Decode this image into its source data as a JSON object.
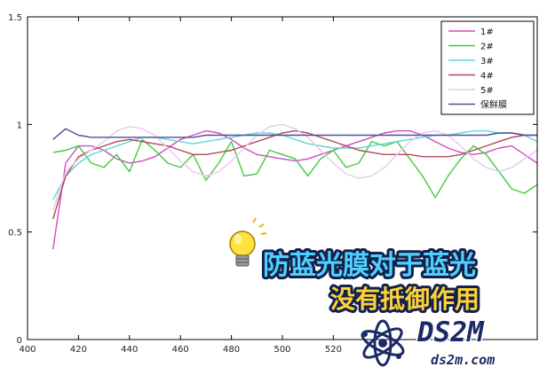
{
  "chart_data": {
    "type": "line",
    "title": "",
    "xlabel": "",
    "ylabel": "",
    "xlim": [
      400,
      600
    ],
    "ylim": [
      0,
      1.5
    ],
    "x_ticks": [
      400,
      420,
      440,
      460,
      480,
      500,
      520
    ],
    "y_ticks": [
      0,
      0.5,
      1,
      1.5
    ],
    "y_tick_labels": [
      "0",
      "0.5",
      "1",
      "1.5"
    ],
    "grid": false,
    "legend_position": "top-right",
    "x": [
      410,
      415,
      420,
      425,
      430,
      435,
      440,
      445,
      450,
      455,
      460,
      465,
      470,
      475,
      480,
      485,
      490,
      495,
      500,
      505,
      510,
      515,
      520,
      525,
      530,
      535,
      540,
      545,
      550,
      555,
      560,
      565,
      570,
      575,
      580,
      585,
      590,
      595,
      600
    ],
    "series": [
      {
        "name": "1#",
        "color": "#d04cc4",
        "values": [
          0.42,
          0.82,
          0.9,
          0.9,
          0.88,
          0.84,
          0.82,
          0.83,
          0.85,
          0.89,
          0.93,
          0.95,
          0.97,
          0.96,
          0.93,
          0.89,
          0.86,
          0.85,
          0.84,
          0.83,
          0.84,
          0.86,
          0.88,
          0.9,
          0.92,
          0.94,
          0.96,
          0.97,
          0.97,
          0.95,
          0.92,
          0.89,
          0.87,
          0.86,
          0.87,
          0.89,
          0.9,
          0.86,
          0.82
        ]
      },
      {
        "name": "2#",
        "color": "#3fcc3f",
        "values": [
          0.87,
          0.88,
          0.9,
          0.82,
          0.8,
          0.86,
          0.78,
          0.93,
          0.88,
          0.82,
          0.8,
          0.86,
          0.74,
          0.82,
          0.92,
          0.76,
          0.77,
          0.88,
          0.86,
          0.84,
          0.76,
          0.84,
          0.88,
          0.8,
          0.82,
          0.92,
          0.9,
          0.92,
          0.84,
          0.76,
          0.66,
          0.76,
          0.84,
          0.9,
          0.86,
          0.78,
          0.7,
          0.68,
          0.72
        ]
      },
      {
        "name": "3#",
        "color": "#5fd6d6",
        "values": [
          0.65,
          0.76,
          0.82,
          0.86,
          0.88,
          0.9,
          0.92,
          0.94,
          0.94,
          0.93,
          0.92,
          0.91,
          0.92,
          0.93,
          0.94,
          0.95,
          0.96,
          0.96,
          0.95,
          0.93,
          0.91,
          0.9,
          0.89,
          0.89,
          0.89,
          0.9,
          0.91,
          0.92,
          0.93,
          0.94,
          0.95,
          0.95,
          0.96,
          0.97,
          0.97,
          0.96,
          0.96,
          0.95,
          0.92
        ]
      },
      {
        "name": "4#",
        "color": "#b04a55",
        "values": [
          0.56,
          0.76,
          0.85,
          0.88,
          0.9,
          0.92,
          0.93,
          0.92,
          0.91,
          0.9,
          0.88,
          0.86,
          0.86,
          0.87,
          0.88,
          0.9,
          0.92,
          0.94,
          0.96,
          0.97,
          0.96,
          0.94,
          0.92,
          0.9,
          0.88,
          0.87,
          0.86,
          0.86,
          0.86,
          0.85,
          0.85,
          0.85,
          0.86,
          0.88,
          0.9,
          0.92,
          0.94,
          0.95,
          0.95
        ]
      },
      {
        "name": "5#",
        "color": "#e8c8ec",
        "values": [
          0.6,
          0.78,
          0.84,
          0.88,
          0.92,
          0.97,
          0.99,
          0.98,
          0.95,
          0.89,
          0.83,
          0.78,
          0.76,
          0.78,
          0.83,
          0.89,
          0.95,
          0.99,
          1.0,
          0.98,
          0.94,
          0.88,
          0.82,
          0.77,
          0.75,
          0.76,
          0.8,
          0.86,
          0.92,
          0.96,
          0.97,
          0.95,
          0.9,
          0.84,
          0.8,
          0.78,
          0.8,
          0.84,
          0.88
        ]
      },
      {
        "name": "保鲜膜",
        "color": "#4f4f9e",
        "values": [
          0.93,
          0.98,
          0.95,
          0.94,
          0.94,
          0.94,
          0.94,
          0.94,
          0.94,
          0.94,
          0.94,
          0.94,
          0.95,
          0.95,
          0.95,
          0.95,
          0.95,
          0.95,
          0.95,
          0.95,
          0.95,
          0.95,
          0.95,
          0.95,
          0.95,
          0.95,
          0.95,
          0.95,
          0.95,
          0.95,
          0.95,
          0.95,
          0.95,
          0.95,
          0.95,
          0.96,
          0.96,
          0.95,
          0.95
        ]
      }
    ]
  },
  "banner": {
    "line1": "防蓝光膜对于蓝光",
    "line2": "没有抵御作用"
  },
  "watermark": {
    "logo_text": "DS2M",
    "url_text": "ds2m.com",
    "logo_icon": "atom-icon"
  },
  "banner_icon": "lightbulb-icon"
}
